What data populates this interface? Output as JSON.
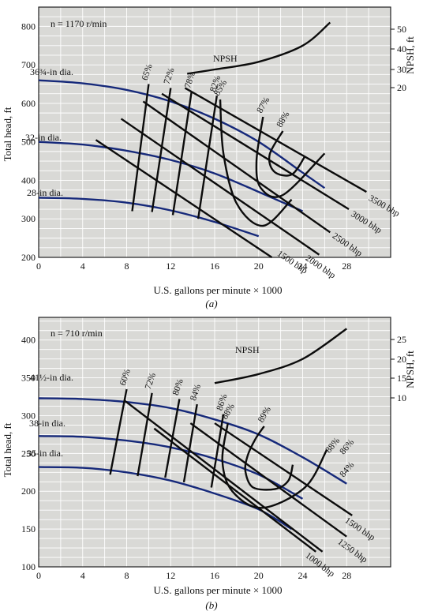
{
  "chart_data": [
    {
      "type": "line",
      "caption": "(a)",
      "speed_label": "n = 1170 r/min",
      "xlabel": "U.S. gallons per minute × 1000",
      "ylabel": "Total head, ft",
      "y2label": "NPSH, ft",
      "xlim": [
        0,
        32
      ],
      "ylim": [
        200,
        850
      ],
      "xticks": [
        "0",
        "4",
        "8",
        "12",
        "16",
        "20",
        "24",
        "28"
      ],
      "yticks": [
        "200",
        "300",
        "400",
        "500",
        "600",
        "700",
        "800"
      ],
      "y2ticks": [
        "20",
        "30",
        "40",
        "50"
      ],
      "grid": true,
      "impeller_curves": [
        {
          "name": "36¾-in dia.",
          "x": [
            0,
            4,
            8,
            12,
            16,
            20,
            24,
            26
          ],
          "y": [
            660,
            652,
            635,
            605,
            560,
            500,
            420,
            380
          ]
        },
        {
          "name": "32-in dia.",
          "x": [
            0,
            4,
            8,
            12,
            16,
            20,
            24
          ],
          "y": [
            500,
            493,
            477,
            453,
            418,
            370,
            320
          ]
        },
        {
          "name": "28-in dia.",
          "x": [
            0,
            4,
            8,
            12,
            16,
            20
          ],
          "y": [
            355,
            352,
            342,
            322,
            292,
            255
          ]
        }
      ],
      "npsh_curve": {
        "name": "NPSH",
        "x": [
          13.5,
          16,
          20,
          24,
          26.5
        ],
        "y": [
          677,
          688,
          708,
          750,
          810
        ]
      },
      "efficiency_curves": [
        {
          "label": "65%",
          "x": [
            8.5,
            10
          ],
          "y": [
            320,
            650
          ]
        },
        {
          "label": "72%",
          "x": [
            10.3,
            12
          ],
          "y": [
            318,
            640
          ]
        },
        {
          "label": "78%",
          "x": [
            12.2,
            13.9
          ],
          "y": [
            310,
            630
          ]
        },
        {
          "label": "82%",
          "x": [
            14.5,
            16.2
          ],
          "y": [
            300,
            620
          ]
        }
      ],
      "efficiency_loops": [
        {
          "label": "85%",
          "x": [
            16.5,
            16.8,
            18,
            20.4,
            23
          ],
          "y": [
            610,
            470,
            340,
            282,
            350
          ]
        },
        {
          "label": "87%",
          "x": [
            20.4,
            19.8,
            20.2,
            22.2,
            26
          ],
          "y": [
            565,
            450,
            380,
            362,
            470
          ]
        },
        {
          "label": "88%",
          "x": [
            22.2,
            21,
            21.4,
            23,
            24.2
          ],
          "y": [
            528,
            467,
            423,
            415,
            462
          ]
        }
      ],
      "power_lines": [
        {
          "label": "1500 bhp",
          "x": [
            5.2,
            21.2
          ],
          "y": [
            505,
            200
          ]
        },
        {
          "label": "2000 bhp",
          "x": [
            7.5,
            25.5
          ],
          "y": [
            560,
            207
          ]
        },
        {
          "label": "2500 bhp",
          "x": [
            9.5,
            26.5
          ],
          "y": [
            605,
            265
          ]
        },
        {
          "label": "3000 bhp",
          "x": [
            11.2,
            28.2
          ],
          "y": [
            625,
            325
          ]
        },
        {
          "label": "3500 bhp",
          "x": [
            13.3,
            29.8
          ],
          "y": [
            640,
            370
          ]
        }
      ]
    },
    {
      "type": "line",
      "caption": "(b)",
      "speed_label": "n = 710 r/min",
      "xlabel": "U.S. gallons per minute × 1000",
      "ylabel": "Total head, ft",
      "y2label": "NPSH, ft",
      "xlim": [
        0,
        32
      ],
      "ylim": [
        100,
        430
      ],
      "xticks": [
        "0",
        "4",
        "8",
        "12",
        "16",
        "20",
        "24",
        "28"
      ],
      "yticks": [
        "100",
        "150",
        "200",
        "250",
        "300",
        "350",
        "400"
      ],
      "y2ticks": [
        "10",
        "15",
        "20",
        "25"
      ],
      "grid": true,
      "impeller_curves": [
        {
          "name": "41½-in dia.",
          "x": [
            0,
            4,
            8,
            12,
            16,
            20,
            24,
            28
          ],
          "y": [
            323,
            322,
            318,
            310,
            295,
            275,
            245,
            210
          ]
        },
        {
          "name": "38-in dia.",
          "x": [
            0,
            4,
            8,
            12,
            16,
            20,
            24
          ],
          "y": [
            273,
            272,
            267,
            258,
            243,
            222,
            190
          ]
        },
        {
          "name": "35-in dia.",
          "x": [
            0,
            4,
            8,
            12,
            16,
            20,
            23
          ],
          "y": [
            232,
            231,
            225,
            214,
            197,
            176,
            150
          ]
        }
      ],
      "npsh_curve": {
        "name": "NPSH",
        "x": [
          16,
          20,
          24,
          28
        ],
        "y": [
          343,
          355,
          375,
          415
        ]
      },
      "efficiency_curves": [
        {
          "label": "60%",
          "x": [
            6.5,
            8
          ],
          "y": [
            222,
            335
          ]
        },
        {
          "label": "72%",
          "x": [
            9,
            10.3
          ],
          "y": [
            220,
            330
          ]
        },
        {
          "label": "80%",
          "x": [
            11.5,
            12.8
          ],
          "y": [
            218,
            322
          ]
        },
        {
          "label": "84%",
          "x": [
            13.2,
            14.4
          ],
          "y": [
            212,
            315
          ]
        },
        {
          "label": "86%",
          "x": [
            15.7,
            16.8
          ],
          "y": [
            205,
            302
          ]
        }
      ],
      "efficiency_loops": [
        {
          "label": "88%",
          "x": [
            17.2,
            16.7,
            17.6,
            20.3,
            24.2,
            26.2
          ],
          "y": [
            290,
            240,
            200,
            178,
            205,
            255
          ]
        },
        {
          "label": "89%",
          "x": [
            20.5,
            19.7,
            19,
            18.8,
            19.5,
            21.5,
            22.7,
            23.1
          ],
          "y": [
            286,
            269,
            247,
            226,
            205,
            203,
            214,
            235
          ]
        }
      ],
      "power_lines": [
        {
          "label": "1000 bhp",
          "x": [
            10.5,
            25.2
          ],
          "y": [
            283,
            120
          ]
        },
        {
          "label": "1250 bhp",
          "x": [
            13.8,
            28
          ],
          "y": [
            290,
            140
          ]
        },
        {
          "label": "1500 bhp",
          "x": [
            16,
            28.5
          ],
          "y": [
            290,
            168
          ]
        }
      ],
      "unlabeled_lines": [
        {
          "x": [
            7.8,
            25.8
          ],
          "y": [
            320,
            120
          ]
        }
      ],
      "high_efficiency_labels": [
        {
          "label": "88%",
          "x": [
            27,
            25.3
          ],
          "y": [
            250,
            220
          ]
        },
        {
          "label": "86%",
          "x": [
            28.3,
            26.5
          ],
          "y": [
            248,
            195
          ]
        },
        {
          "label": "84%",
          "x": [
            28.3,
            27
          ],
          "y": [
            218,
            180
          ]
        }
      ]
    }
  ]
}
